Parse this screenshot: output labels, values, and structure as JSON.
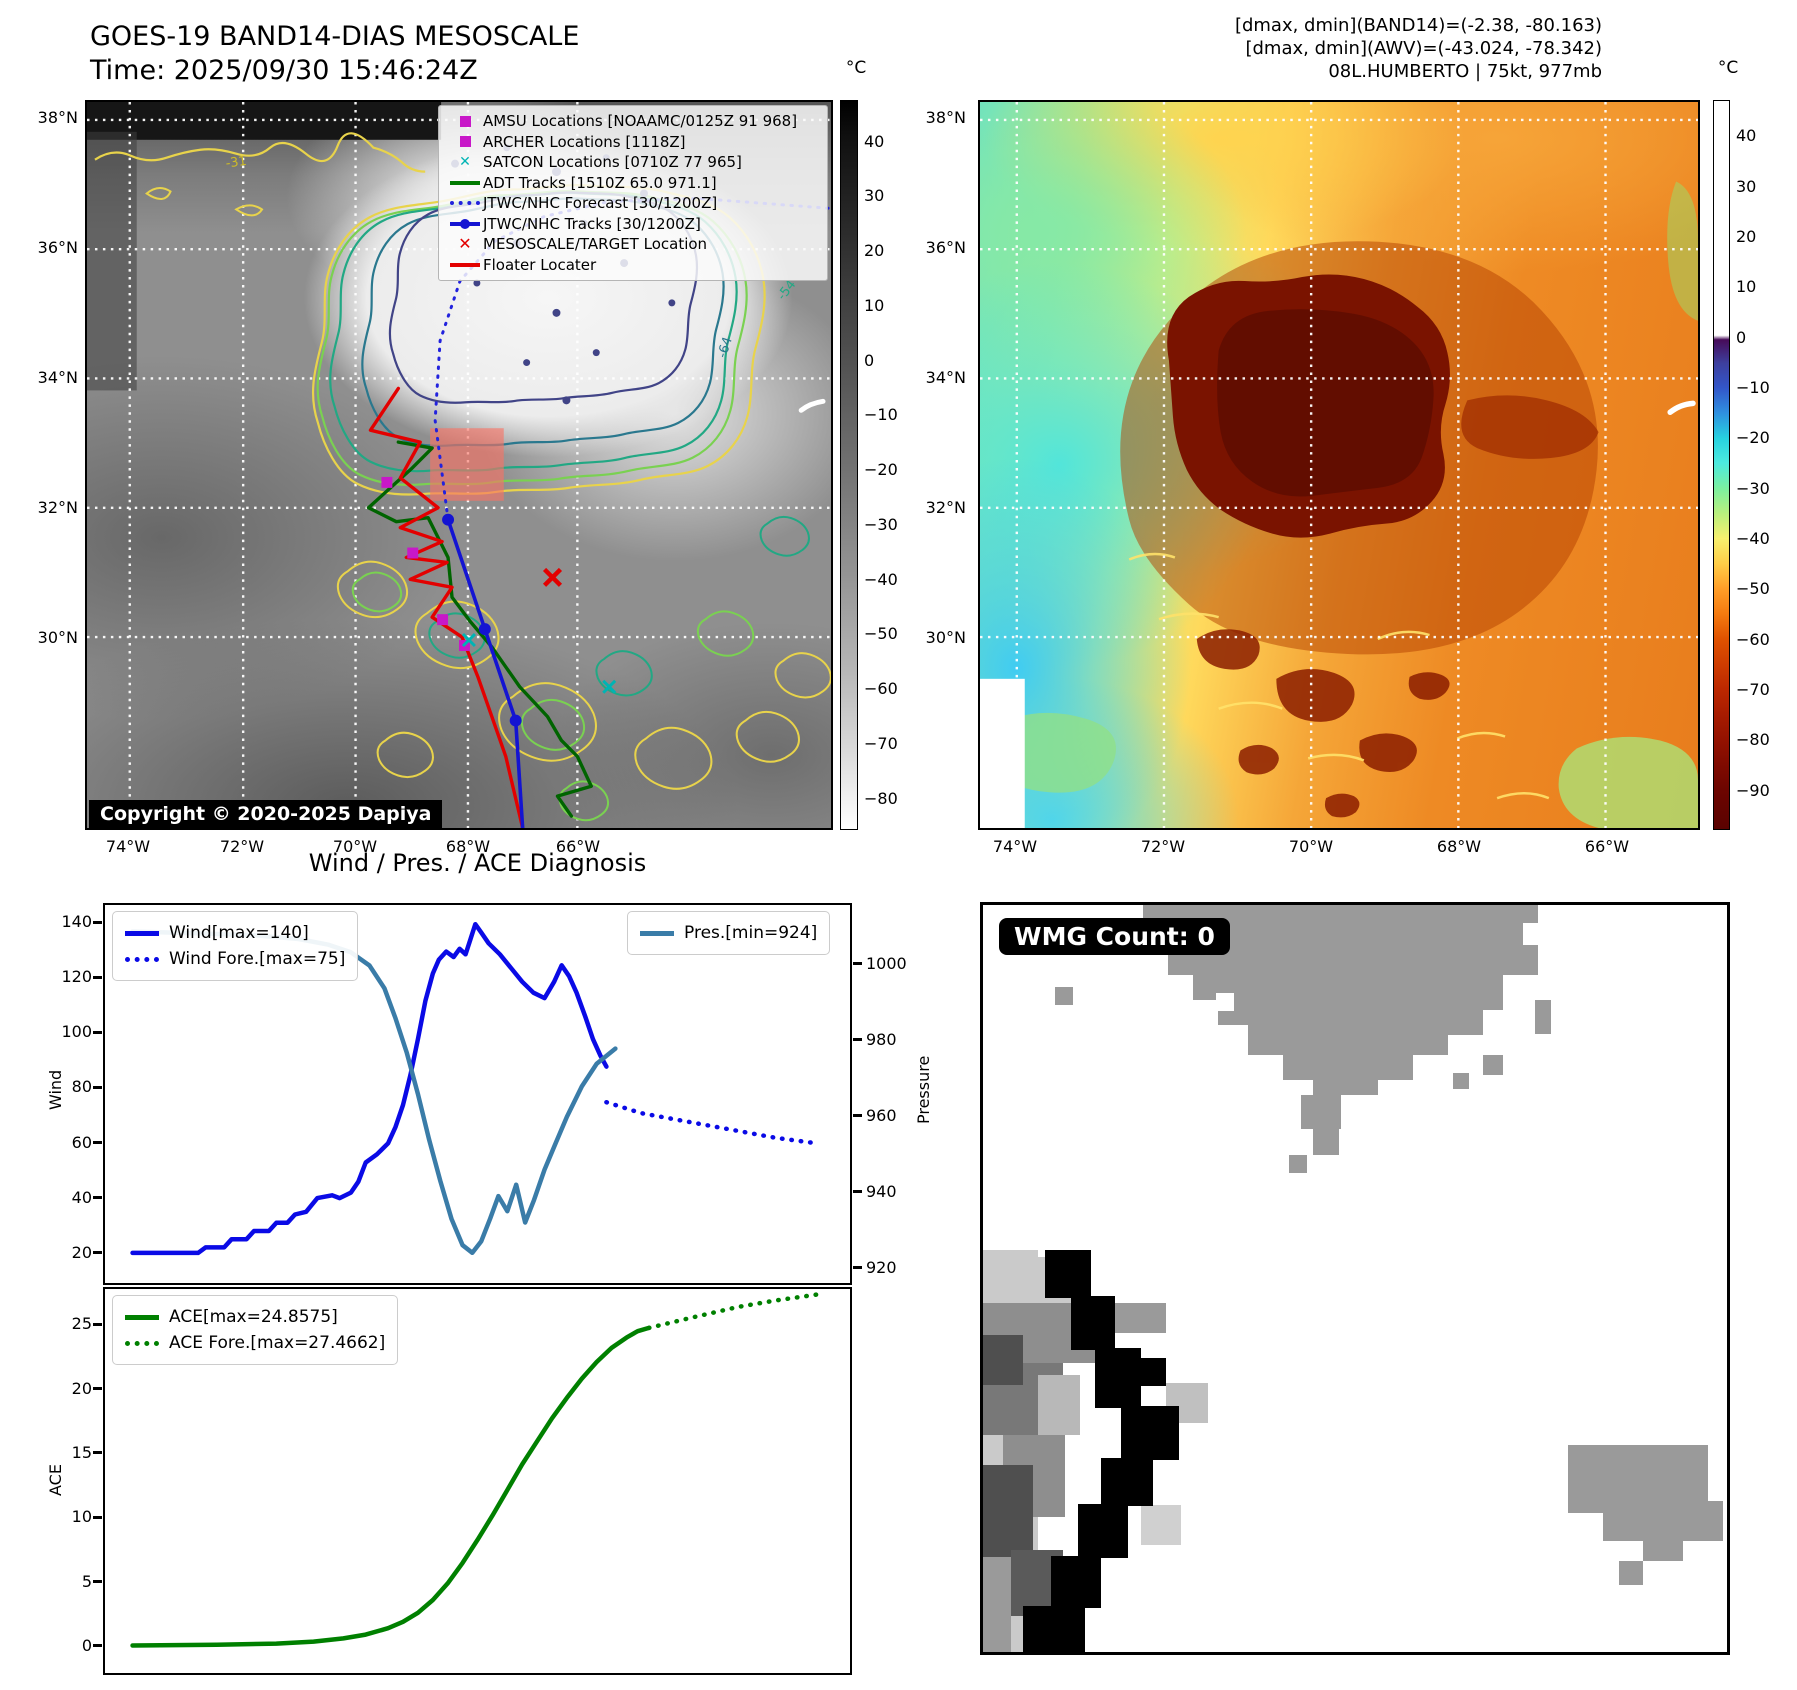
{
  "header": {
    "title_line1": "GOES-19 BAND14-DIAS MESOSCALE",
    "title_line2": "Time: 2025/09/30 15:46:24Z",
    "right_line1": "[dmax, dmin](BAND14)=(-2.38, -80.163)",
    "right_line2": "[dmax, dmin](AWV)=(-43.024, -78.342)",
    "right_line3": "08L.HUMBERTO | 75kt, 977mb"
  },
  "maps": {
    "lat_labels": [
      "38°N",
      "36°N",
      "34°N",
      "32°N",
      "30°N"
    ],
    "lon_labels": [
      "74°W",
      "72°W",
      "70°W",
      "68°W",
      "66°W"
    ],
    "copyright": "Copyright © 2020-2025 Dapiya",
    "contour_labels": [
      "-31",
      "-54",
      "-64"
    ],
    "legend_items": [
      {
        "label": "AMSU Locations [NOAAMC/0125Z 91 968]",
        "marker": "magenta-square"
      },
      {
        "label": "ARCHER Locations [1118Z]",
        "marker": "magenta-square"
      },
      {
        "label": "SATCON Locations [0710Z 77 965]",
        "marker": "cyan-x"
      },
      {
        "label": "ADT Tracks [1510Z 65.0 971.1]",
        "marker": "green-line"
      },
      {
        "label": "JTWC/NHC Forecast [30/1200Z]",
        "marker": "blue-dotted-line"
      },
      {
        "label": "JTWC/NHC Tracks [30/1200Z]",
        "marker": "blue-line-dot"
      },
      {
        "label": "MESOSCALE/TARGET Location",
        "marker": "red-x"
      },
      {
        "label": "Floater Locater",
        "marker": "red-line"
      }
    ],
    "colorbar_left": {
      "title": "°C",
      "ticks": [
        40,
        30,
        20,
        10,
        0,
        -10,
        -20,
        -30,
        -40,
        -50,
        -60,
        -70,
        -80
      ],
      "vmax": 47.6,
      "vmin": -85.7
    },
    "colorbar_right": {
      "title": "°C",
      "ticks": [
        40,
        30,
        20,
        10,
        0,
        -10,
        -20,
        -30,
        -40,
        -50,
        -60,
        -70,
        -80,
        -90
      ],
      "vmax": 47.2,
      "vmin": -97.8
    }
  },
  "wmg": {
    "badge": "WMG Count: 0"
  },
  "charts": {
    "title": "Wind / Pres. / ACE Diagnosis",
    "ylabel_wind": "Wind",
    "ylabel_pressure": "Pressure",
    "ylabel_ace": "ACE",
    "legend_wind": [
      "Wind[max=140]",
      "Wind Fore.[max=75]"
    ],
    "legend_pres": [
      "Pres.[min=924]"
    ],
    "legend_ace": [
      "ACE[max=24.8575]",
      "ACE Fore.[max=27.4662]"
    ]
  },
  "chart_data": [
    {
      "type": "line",
      "title": "Wind / Pres. / ACE Diagnosis",
      "xlabel": "",
      "ylabel_left": "Wind",
      "ylabel_right": "Pressure",
      "x_axis": "time (unlabeled), x given as 0-1 fraction of axis",
      "y_ticks_left": [
        140,
        120,
        100,
        80,
        60,
        40,
        20
      ],
      "y_ticks_right": [
        1000,
        980,
        960,
        940,
        920
      ],
      "ylim_left": [
        9,
        147
      ],
      "ylim_right": [
        916,
        1016
      ],
      "grid": false,
      "series": [
        {
          "name": "Wind[max=140]",
          "style": "solid",
          "color": "#0a0ae6",
          "axis": "left",
          "points": [
            [
              0.037,
              20
            ],
            [
              0.125,
              20
            ],
            [
              0.135,
              22
            ],
            [
              0.16,
              22
            ],
            [
              0.17,
              25
            ],
            [
              0.19,
              25
            ],
            [
              0.2,
              28
            ],
            [
              0.22,
              28
            ],
            [
              0.23,
              31
            ],
            [
              0.245,
              31
            ],
            [
              0.255,
              34
            ],
            [
              0.27,
              35
            ],
            [
              0.285,
              40
            ],
            [
              0.305,
              41
            ],
            [
              0.315,
              40
            ],
            [
              0.33,
              42
            ],
            [
              0.34,
              46
            ],
            [
              0.35,
              53
            ],
            [
              0.365,
              56
            ],
            [
              0.38,
              60
            ],
            [
              0.39,
              66
            ],
            [
              0.4,
              74
            ],
            [
              0.41,
              85
            ],
            [
              0.42,
              98
            ],
            [
              0.43,
              112
            ],
            [
              0.44,
              122
            ],
            [
              0.448,
              127
            ],
            [
              0.458,
              130
            ],
            [
              0.468,
              128
            ],
            [
              0.476,
              131
            ],
            [
              0.484,
              129
            ],
            [
              0.49,
              134
            ],
            [
              0.497,
              140
            ],
            [
              0.505,
              137
            ],
            [
              0.515,
              133
            ],
            [
              0.53,
              129
            ],
            [
              0.545,
              124
            ],
            [
              0.56,
              119
            ],
            [
              0.575,
              115
            ],
            [
              0.59,
              113
            ],
            [
              0.603,
              119
            ],
            [
              0.613,
              125
            ],
            [
              0.623,
              121
            ],
            [
              0.633,
              115
            ],
            [
              0.645,
              106
            ],
            [
              0.655,
              98
            ],
            [
              0.665,
              92
            ],
            [
              0.673,
              88
            ]
          ]
        },
        {
          "name": "Wind Fore.[max=75]",
          "style": "dotted",
          "color": "#0a0ae6",
          "axis": "left",
          "points": [
            [
              0.673,
              75
            ],
            [
              0.72,
              71
            ],
            [
              0.78,
              68
            ],
            [
              0.84,
              65
            ],
            [
              0.9,
              62
            ],
            [
              0.955,
              60
            ]
          ]
        },
        {
          "name": "Pres.[min=924]",
          "style": "solid",
          "color": "#3a7ca8",
          "axis": "right",
          "points": [
            [
              0.037,
              1009
            ],
            [
              0.12,
              1008.5
            ],
            [
              0.2,
              1008
            ],
            [
              0.26,
              1007
            ],
            [
              0.3,
              1005.5
            ],
            [
              0.33,
              1003.5
            ],
            [
              0.355,
              1000
            ],
            [
              0.375,
              994
            ],
            [
              0.39,
              986
            ],
            [
              0.405,
              977
            ],
            [
              0.42,
              966
            ],
            [
              0.435,
              954
            ],
            [
              0.45,
              943
            ],
            [
              0.465,
              933
            ],
            [
              0.48,
              926
            ],
            [
              0.493,
              924
            ],
            [
              0.505,
              927
            ],
            [
              0.517,
              933
            ],
            [
              0.528,
              939
            ],
            [
              0.54,
              935
            ],
            [
              0.552,
              942
            ],
            [
              0.564,
              932
            ],
            [
              0.576,
              938
            ],
            [
              0.59,
              946
            ],
            [
              0.605,
              953
            ],
            [
              0.62,
              960
            ],
            [
              0.64,
              968
            ],
            [
              0.66,
              974
            ],
            [
              0.685,
              978
            ]
          ]
        }
      ]
    },
    {
      "type": "line",
      "title": "ACE",
      "xlabel": "",
      "ylabel_left": "ACE",
      "y_ticks_left": [
        25,
        20,
        15,
        10,
        5,
        0
      ],
      "ylim_left": [
        -2.1,
        27.9
      ],
      "grid": false,
      "series": [
        {
          "name": "ACE[max=24.8575]",
          "style": "solid",
          "color": "#008000",
          "axis": "left",
          "points": [
            [
              0.037,
              0.05
            ],
            [
              0.15,
              0.1
            ],
            [
              0.23,
              0.2
            ],
            [
              0.28,
              0.35
            ],
            [
              0.32,
              0.6
            ],
            [
              0.35,
              0.9
            ],
            [
              0.38,
              1.4
            ],
            [
              0.4,
              1.9
            ],
            [
              0.42,
              2.6
            ],
            [
              0.44,
              3.6
            ],
            [
              0.46,
              4.9
            ],
            [
              0.48,
              6.5
            ],
            [
              0.5,
              8.3
            ],
            [
              0.52,
              10.2
            ],
            [
              0.54,
              12.2
            ],
            [
              0.56,
              14.2
            ],
            [
              0.58,
              16.0
            ],
            [
              0.6,
              17.8
            ],
            [
              0.62,
              19.4
            ],
            [
              0.64,
              20.9
            ],
            [
              0.66,
              22.2
            ],
            [
              0.68,
              23.3
            ],
            [
              0.7,
              24.1
            ],
            [
              0.715,
              24.6
            ],
            [
              0.73,
              24.8575
            ]
          ]
        },
        {
          "name": "ACE Fore.[max=27.4662]",
          "style": "dotted",
          "color": "#008000",
          "axis": "left",
          "points": [
            [
              0.73,
              24.8575
            ],
            [
              0.79,
              25.7
            ],
            [
              0.85,
              26.5
            ],
            [
              0.9,
              27.0
            ],
            [
              0.955,
              27.4662
            ]
          ]
        }
      ]
    }
  ]
}
